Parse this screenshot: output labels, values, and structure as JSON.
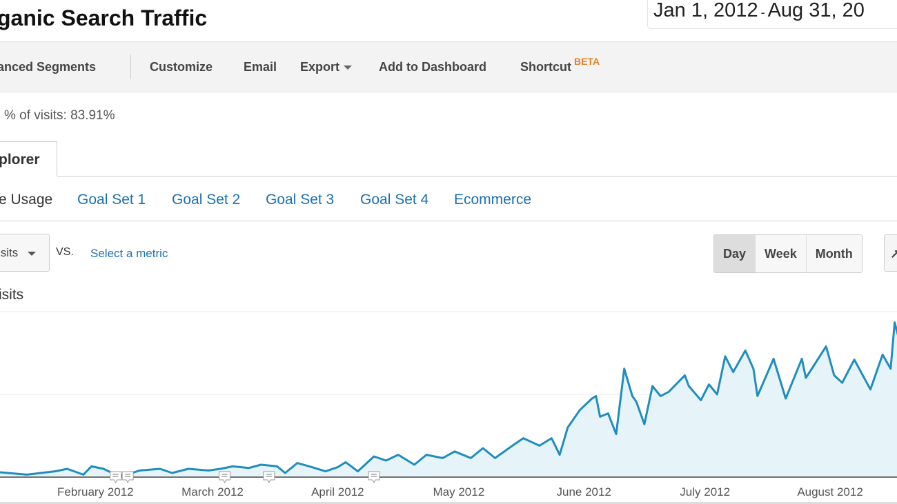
{
  "header": {
    "title": "ganic Search Traffic",
    "date_start": "Jan 1, 2012",
    "date_sep": "-",
    "date_end": "Aug 31, 20"
  },
  "toolbar": {
    "segments": "anced Segments",
    "customize": "Customize",
    "email": "Email",
    "export": "Export",
    "add_dashboard": "Add to Dashboard",
    "shortcut": "Shortcut",
    "beta": "BETA"
  },
  "summary": {
    "pct_visits": "% of visits: 83.91%"
  },
  "tabs": {
    "explorer": "plorer"
  },
  "subtabs": [
    "e Usage",
    "Goal Set 1",
    "Goal Set 2",
    "Goal Set 3",
    "Goal Set 4",
    "Ecommerce"
  ],
  "controls": {
    "metric": "isits",
    "vs": "VS.",
    "select_metric": "Select a metric",
    "periods": [
      "Day",
      "Week",
      "Month"
    ],
    "active_period": "Day",
    "chart_type_glyph": "↗"
  },
  "colors": {
    "line": "#1f8dbd",
    "fill": "#e6f3f9",
    "link": "#1a70b0",
    "beta": "#e0822a"
  },
  "chart_data": {
    "type": "area",
    "series_label": "isits",
    "xlim": [
      "2012-01-01",
      "2012-08-31"
    ],
    "x_tick_labels": [
      "February 2012",
      "March 2012",
      "April 2012",
      "May 2012",
      "June 2012",
      "July 2012",
      "August 2012"
    ],
    "x_tick_dates": [
      "2012-02-01",
      "2012-03-01",
      "2012-04-01",
      "2012-05-01",
      "2012-06-01",
      "2012-07-01",
      "2012-08-01"
    ],
    "y_unit": "gridline intervals (no y tick labels shown)",
    "ylim": [
      0,
      2
    ],
    "grid": true,
    "annotation_dates": [
      "2012-02-06",
      "2012-02-09",
      "2012-03-04",
      "2012-03-15",
      "2012-04-10"
    ],
    "points": [
      [
        "2012-01-08",
        0.06
      ],
      [
        "2012-01-15",
        0.03
      ],
      [
        "2012-01-22",
        0.07
      ],
      [
        "2012-01-25",
        0.1
      ],
      [
        "2012-01-29",
        0.03
      ],
      [
        "2012-01-31",
        0.13
      ],
      [
        "2012-02-03",
        0.1
      ],
      [
        "2012-02-06",
        0.03
      ],
      [
        "2012-02-08",
        0.02
      ],
      [
        "2012-02-12",
        0.08
      ],
      [
        "2012-02-17",
        0.1
      ],
      [
        "2012-02-20",
        0.05
      ],
      [
        "2012-02-24",
        0.1
      ],
      [
        "2012-02-29",
        0.08
      ],
      [
        "2012-03-03",
        0.1
      ],
      [
        "2012-03-06",
        0.13
      ],
      [
        "2012-03-10",
        0.11
      ],
      [
        "2012-03-13",
        0.15
      ],
      [
        "2012-03-17",
        0.13
      ],
      [
        "2012-03-19",
        0.05
      ],
      [
        "2012-03-22",
        0.17
      ],
      [
        "2012-03-25",
        0.13
      ],
      [
        "2012-03-29",
        0.07
      ],
      [
        "2012-04-01",
        0.12
      ],
      [
        "2012-04-03",
        0.18
      ],
      [
        "2012-04-06",
        0.07
      ],
      [
        "2012-04-10",
        0.25
      ],
      [
        "2012-04-13",
        0.2
      ],
      [
        "2012-04-16",
        0.27
      ],
      [
        "2012-04-20",
        0.15
      ],
      [
        "2012-04-23",
        0.27
      ],
      [
        "2012-04-27",
        0.23
      ],
      [
        "2012-04-30",
        0.31
      ],
      [
        "2012-05-04",
        0.23
      ],
      [
        "2012-05-07",
        0.35
      ],
      [
        "2012-05-10",
        0.23
      ],
      [
        "2012-05-14",
        0.37
      ],
      [
        "2012-05-17",
        0.47
      ],
      [
        "2012-05-21",
        0.38
      ],
      [
        "2012-05-24",
        0.47
      ],
      [
        "2012-05-26",
        0.27
      ],
      [
        "2012-05-28",
        0.6
      ],
      [
        "2012-05-31",
        0.81
      ],
      [
        "2012-06-03",
        0.95
      ],
      [
        "2012-06-04",
        0.98
      ],
      [
        "2012-06-05",
        0.73
      ],
      [
        "2012-06-07",
        0.77
      ],
      [
        "2012-06-09",
        0.52
      ],
      [
        "2012-06-11",
        1.31
      ],
      [
        "2012-06-13",
        0.98
      ],
      [
        "2012-06-14",
        0.91
      ],
      [
        "2012-06-16",
        0.64
      ],
      [
        "2012-06-18",
        1.1
      ],
      [
        "2012-06-20",
        0.98
      ],
      [
        "2012-06-22",
        1.03
      ],
      [
        "2012-06-26",
        1.23
      ],
      [
        "2012-06-27",
        1.1
      ],
      [
        "2012-06-30",
        0.93
      ],
      [
        "2012-07-02",
        1.12
      ],
      [
        "2012-07-04",
        1.0
      ],
      [
        "2012-07-06",
        1.46
      ],
      [
        "2012-07-08",
        1.27
      ],
      [
        "2012-07-11",
        1.53
      ],
      [
        "2012-07-13",
        1.31
      ],
      [
        "2012-07-14",
        0.98
      ],
      [
        "2012-07-18",
        1.43
      ],
      [
        "2012-07-21",
        0.95
      ],
      [
        "2012-07-25",
        1.43
      ],
      [
        "2012-07-26",
        1.2
      ],
      [
        "2012-07-28",
        1.35
      ],
      [
        "2012-07-31",
        1.58
      ],
      [
        "2012-08-02",
        1.23
      ],
      [
        "2012-08-04",
        1.14
      ],
      [
        "2012-08-07",
        1.42
      ],
      [
        "2012-08-11",
        1.06
      ],
      [
        "2012-08-14",
        1.48
      ],
      [
        "2012-08-16",
        1.31
      ],
      [
        "2012-08-17",
        1.87
      ],
      [
        "2012-08-18",
        1.68
      ]
    ]
  }
}
